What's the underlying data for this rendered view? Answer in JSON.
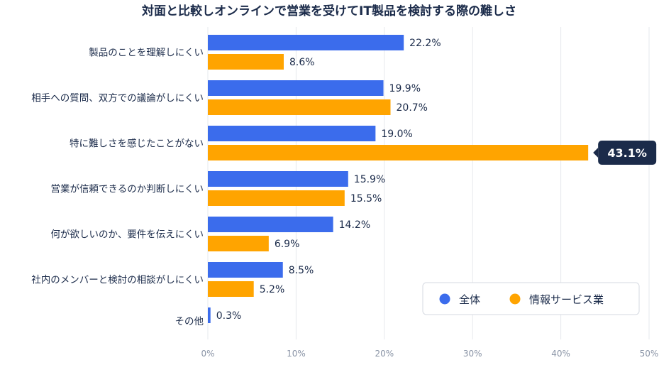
{
  "chart_data": {
    "type": "bar",
    "orientation": "horizontal",
    "title": "対面と比較しオンラインで営業を受けてIT製品を検討する際の難しさ",
    "categories": [
      "製品のことを理解しにくい",
      "相手への質問、双方での議論がしにくい",
      "特に難しさを感じたことがない",
      "営業が信頼できるのか判断しにくい",
      "何が欲しいのか、要件を伝えにくい",
      "社内のメンバーと検討の相談がしにくい",
      "その他"
    ],
    "series": [
      {
        "name": "全体",
        "color": "#3b6cec",
        "values": [
          22.2,
          19.9,
          19.0,
          15.9,
          14.2,
          8.5,
          0.3
        ],
        "labels": [
          "22.2%",
          "19.9%",
          "19.0%",
          "15.9%",
          "14.2%",
          "8.5%",
          "0.3%"
        ]
      },
      {
        "name": "情報サービス業",
        "color": "#ffa400",
        "values": [
          8.6,
          20.7,
          43.1,
          15.5,
          6.9,
          5.2,
          null
        ],
        "labels": [
          "8.6%",
          "20.7%",
          "43.1%",
          "15.5%",
          "6.9%",
          "5.2%",
          null
        ]
      }
    ],
    "highlight": {
      "series": 1,
      "category": 2,
      "label": "43.1%"
    },
    "xlim": [
      0,
      50
    ],
    "xticks": [
      0,
      10,
      20,
      30,
      40,
      50
    ],
    "xtick_labels": [
      "0%",
      "10%",
      "20%",
      "30%",
      "40%",
      "50%"
    ],
    "grid": true,
    "legend": {
      "position": "bottom-right",
      "items": [
        "全体",
        "情報サービス業"
      ]
    },
    "callout_color": "#1b2b4a"
  }
}
